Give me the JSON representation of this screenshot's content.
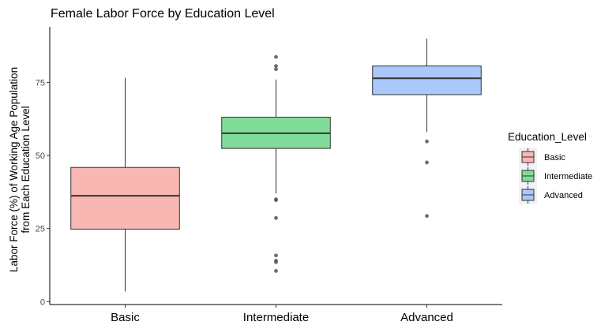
{
  "chart_data": {
    "type": "boxplot",
    "title": "Female Labor Force by Education Level",
    "xlabel": "",
    "ylabel_lines": [
      "Labor Force (%) of Working Age Population",
      "from Each Education Level"
    ],
    "ylim": [
      -1,
      94
    ],
    "yticks": [
      0,
      25,
      50,
      75
    ],
    "categories": [
      "Basic",
      "Intermediate",
      "Advanced"
    ],
    "legend": {
      "title": "Education_Level",
      "position": "right",
      "entries": [
        "Basic",
        "Intermediate",
        "Advanced"
      ]
    },
    "grid": false,
    "colors": {
      "Basic": "#F8B7B2",
      "Intermediate": "#80DC98",
      "Advanced": "#AAC8FA",
      "stroke": "#333333",
      "outlier": "#555555"
    },
    "series": [
      {
        "name": "Basic",
        "whisker_low": 3.5,
        "q1": 24.8,
        "median": 36.2,
        "q3": 45.9,
        "whisker_high": 76.6,
        "outliers": []
      },
      {
        "name": "Intermediate",
        "whisker_low": 37.0,
        "q1": 52.4,
        "median": 57.6,
        "q3": 63.1,
        "whisker_high": 76.0,
        "outliers": [
          83.7,
          80.6,
          79.5,
          35.0,
          34.7,
          28.6,
          15.8,
          14.0,
          13.5,
          10.5
        ]
      },
      {
        "name": "Advanced",
        "whisker_low": 58.0,
        "q1": 70.8,
        "median": 76.4,
        "q3": 80.6,
        "whisker_high": 90.0,
        "outliers": [
          54.8,
          47.6,
          29.3
        ]
      }
    ]
  }
}
